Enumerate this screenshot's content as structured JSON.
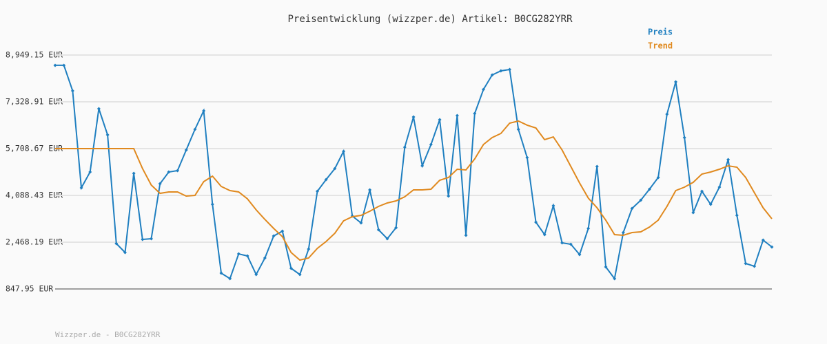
{
  "chart_data": {
    "type": "line",
    "title": "Preisentwicklung (wizzper.de) Artikel: B0CG282YRR",
    "footer": "Wizzper.de - B0CG282YRR",
    "ylim": [
      847.95,
      8949.15
    ],
    "yticks": [
      {
        "value": 847.95,
        "label": "847.95 EUR"
      },
      {
        "value": 2468.19,
        "label": "2,468.19 EUR"
      },
      {
        "value": 4088.43,
        "label": "4,088.43 EUR"
      },
      {
        "value": 5708.67,
        "label": "5,708.67 EUR"
      },
      {
        "value": 7328.91,
        "label": "7,328.91 EUR"
      },
      {
        "value": 8949.15,
        "label": "8,949.15 EUR"
      }
    ],
    "grid": true,
    "legend": "top-right",
    "series": [
      {
        "name": "Preis",
        "color": "#1f7fc0",
        "markers": true,
        "values": [
          8593,
          8593,
          7710,
          4351,
          4899,
          7091,
          6185,
          2421,
          2111,
          4851,
          2564,
          2587,
          4494,
          4899,
          4947,
          5661,
          6376,
          7020,
          3779,
          1396,
          1205,
          2063,
          1992,
          1348,
          1920,
          2683,
          2850,
          1563,
          1348,
          2230,
          4232,
          4637,
          5018,
          5614,
          3374,
          3136,
          4279,
          2897,
          2587,
          2969,
          5757,
          6805,
          5113,
          5852,
          6710,
          4065,
          6853,
          2707,
          6925,
          7758,
          8259,
          8402,
          8449,
          6376,
          5399,
          3159,
          2730,
          3731,
          2445,
          2397,
          2039,
          2945,
          5090,
          1611,
          1205,
          2802,
          3636,
          3922,
          4303,
          4708,
          6901,
          8021,
          6091,
          3493,
          4232,
          3779,
          4375,
          5328,
          3398,
          1730,
          1634,
          2540,
          2302
        ]
      },
      {
        "name": "Trend",
        "color": "#e0891e",
        "markers": false,
        "values": [
          5709,
          5709,
          5709,
          5709,
          5709,
          5709,
          5709,
          5709,
          5709,
          5709,
          5018,
          4446,
          4160,
          4208,
          4208,
          4065,
          4089,
          4565,
          4756,
          4399,
          4256,
          4208,
          3970,
          3588,
          3255,
          2945,
          2659,
          2111,
          1849,
          1920,
          2254,
          2492,
          2778,
          3207,
          3350,
          3398,
          3541,
          3708,
          3827,
          3898,
          4041,
          4279,
          4279,
          4303,
          4613,
          4708,
          4994,
          4971,
          5352,
          5852,
          6091,
          6234,
          6591,
          6663,
          6520,
          6424,
          6019,
          6114,
          5661,
          5090,
          4518,
          3994,
          3660,
          3231,
          2730,
          2707,
          2802,
          2826,
          2993,
          3231,
          3708,
          4256,
          4375,
          4542,
          4828,
          4899,
          4994,
          5113,
          5066,
          4708,
          4184,
          3660,
          3279
        ]
      }
    ]
  }
}
